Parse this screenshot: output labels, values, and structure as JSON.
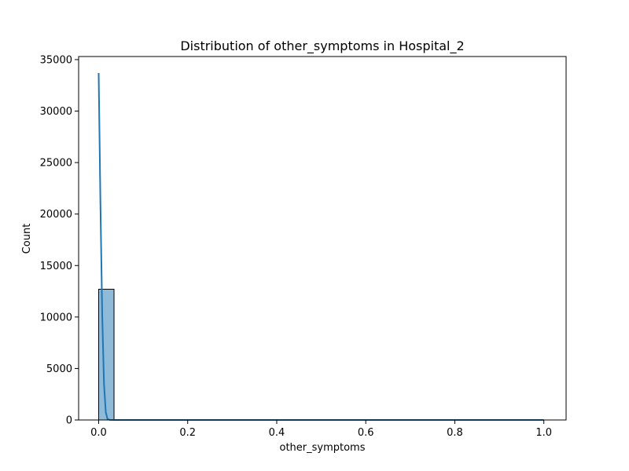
{
  "chart_data": {
    "type": "bar",
    "title": "Distribution of other_symptoms in Hospital_2",
    "xlabel": "other_symptoms",
    "ylabel": "Count",
    "xlim": [
      -0.045,
      1.05
    ],
    "ylim": [
      0,
      35300
    ],
    "xticks": [
      0.0,
      0.2,
      0.4,
      0.6,
      0.8,
      1.0
    ],
    "xtick_labels": [
      "0.0",
      "0.2",
      "0.4",
      "0.6",
      "0.8",
      "1.0"
    ],
    "yticks": [
      0,
      5000,
      10000,
      15000,
      20000,
      25000,
      30000,
      35000
    ],
    "ytick_labels": [
      "0",
      "5000",
      "10000",
      "15000",
      "20000",
      "25000",
      "30000",
      "35000"
    ],
    "grid": false,
    "series": [
      {
        "kind": "histogram",
        "bins": [
          {
            "x0": 0.0,
            "x1": 0.0345,
            "count": 12700
          },
          {
            "x0": 0.0345,
            "x1": 0.069,
            "count": 0
          },
          {
            "x0": 0.069,
            "x1": 0.1034,
            "count": 0
          },
          {
            "x0": 0.1034,
            "x1": 0.1379,
            "count": 0
          },
          {
            "x0": 0.1379,
            "x1": 0.1724,
            "count": 0
          },
          {
            "x0": 0.1724,
            "x1": 0.2069,
            "count": 0
          },
          {
            "x0": 0.2069,
            "x1": 0.2414,
            "count": 0
          },
          {
            "x0": 0.2414,
            "x1": 0.2759,
            "count": 0
          },
          {
            "x0": 0.2759,
            "x1": 0.3103,
            "count": 0
          },
          {
            "x0": 0.3103,
            "x1": 0.3448,
            "count": 0
          },
          {
            "x0": 0.3448,
            "x1": 0.3793,
            "count": 0
          },
          {
            "x0": 0.3793,
            "x1": 0.4138,
            "count": 0
          },
          {
            "x0": 0.4138,
            "x1": 0.4483,
            "count": 0
          },
          {
            "x0": 0.4483,
            "x1": 0.4828,
            "count": 0
          },
          {
            "x0": 0.4828,
            "x1": 0.5172,
            "count": 0
          },
          {
            "x0": 0.5172,
            "x1": 0.5517,
            "count": 0
          },
          {
            "x0": 0.5517,
            "x1": 0.5862,
            "count": 0
          },
          {
            "x0": 0.5862,
            "x1": 0.6207,
            "count": 0
          },
          {
            "x0": 0.6207,
            "x1": 0.6552,
            "count": 0
          },
          {
            "x0": 0.6552,
            "x1": 0.6897,
            "count": 0
          },
          {
            "x0": 0.6897,
            "x1": 0.7241,
            "count": 0
          },
          {
            "x0": 0.7241,
            "x1": 0.7586,
            "count": 0
          },
          {
            "x0": 0.7586,
            "x1": 0.7931,
            "count": 0
          },
          {
            "x0": 0.7931,
            "x1": 0.8276,
            "count": 0
          },
          {
            "x0": 0.8276,
            "x1": 0.8621,
            "count": 0
          },
          {
            "x0": 0.8621,
            "x1": 0.8966,
            "count": 0
          },
          {
            "x0": 0.8966,
            "x1": 0.931,
            "count": 0
          },
          {
            "x0": 0.931,
            "x1": 0.9655,
            "count": 0
          },
          {
            "x0": 0.9655,
            "x1": 1.0,
            "count": 0
          }
        ],
        "color": "#1f77b4",
        "fill_alpha": 0.5
      },
      {
        "kind": "kde",
        "points": [
          [
            0.0,
            33700
          ],
          [
            0.004,
            21000
          ],
          [
            0.008,
            10200
          ],
          [
            0.012,
            3500
          ],
          [
            0.016,
            750
          ],
          [
            0.02,
            90
          ],
          [
            0.025,
            5
          ],
          [
            0.035,
            0
          ],
          [
            0.1,
            0
          ],
          [
            0.3,
            0
          ],
          [
            0.5,
            0
          ],
          [
            0.7,
            0
          ],
          [
            0.9,
            0
          ],
          [
            1.0,
            0
          ]
        ],
        "color": "#1f77b4"
      }
    ]
  }
}
